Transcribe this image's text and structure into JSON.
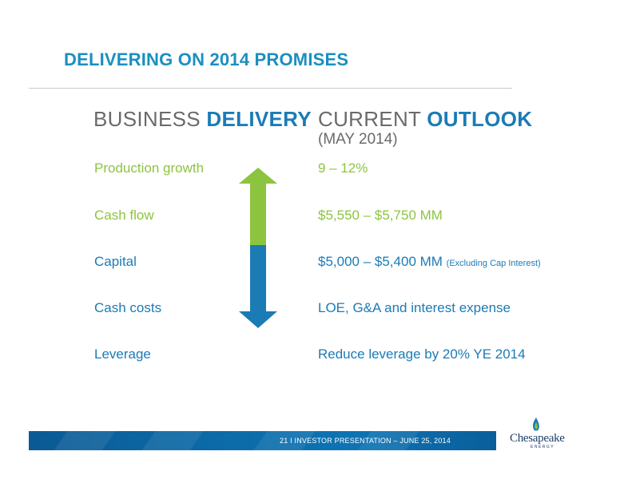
{
  "slide": {
    "title": "DELIVERING ON 2014 PROMISES",
    "left_heading_light": "BUSINESS ",
    "left_heading_bold": "DELIVERY",
    "right_heading_light": "CURRENT ",
    "right_heading_bold": "OUTLOOK",
    "right_subheading": "(MAY 2014)"
  },
  "rows": [
    {
      "label": "Production growth",
      "value": "9 – 12%",
      "note": ""
    },
    {
      "label": "Cash flow",
      "value": "$5,550 – $5,750 MM",
      "note": ""
    },
    {
      "label": "Capital",
      "value": "$5,000 – $5,400 MM ",
      "note": "(Excluding Cap Interest)"
    },
    {
      "label": "Cash costs",
      "value": "LOE, G&A and interest expense",
      "note": ""
    },
    {
      "label": "Leverage",
      "value": "Reduce leverage by 20% YE 2014",
      "note": ""
    }
  ],
  "colors": {
    "green": "#8cc43f",
    "blue": "#1b7bb5",
    "title_blue": "#1a8fc1"
  },
  "footer": {
    "text": "21   I   INVESTOR PRESENTATION – JUNE 25, 2014",
    "logo_name": "Chesapeake",
    "logo_sub": "ENERGY"
  }
}
